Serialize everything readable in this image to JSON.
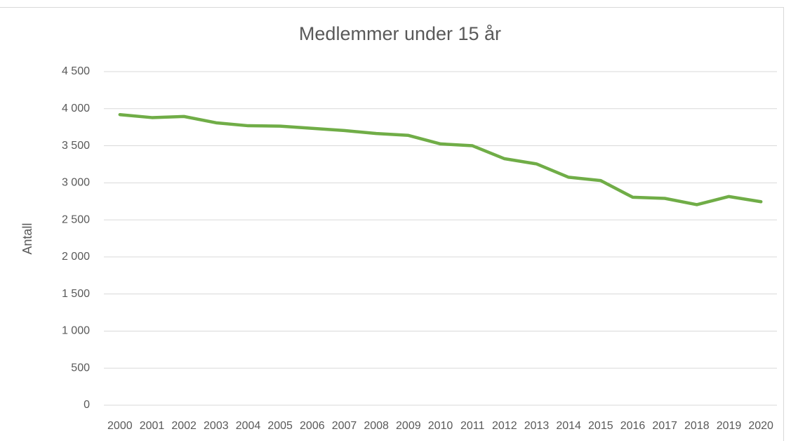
{
  "chart_data": {
    "type": "line",
    "title": "Medlemmer under 15 år",
    "y_label": "Antall",
    "categories": [
      "2000",
      "2001",
      "2002",
      "2003",
      "2004",
      "2005",
      "2006",
      "2007",
      "2008",
      "2009",
      "2010",
      "2011",
      "2012",
      "2013",
      "2014",
      "2015",
      "2016",
      "2017",
      "2018",
      "2019",
      "2020"
    ],
    "series": [
      {
        "name": "Medlemmer under 15 år",
        "color": "#70ad47",
        "values": [
          3920,
          3880,
          3895,
          3810,
          3770,
          3765,
          3735,
          3705,
          3665,
          3640,
          3525,
          3500,
          3325,
          3255,
          3075,
          3030,
          2805,
          2790,
          2705,
          2815,
          2745
        ]
      }
    ],
    "ylim": [
      0,
      4500
    ],
    "yticks": [
      0,
      500,
      {
        "value": 1000,
        "label": "1 000"
      },
      {
        "value": 1500,
        "label": "1 500"
      },
      {
        "value": 2000,
        "label": "2 000"
      },
      {
        "value": 2500,
        "label": "2 500"
      },
      {
        "value": 3000,
        "label": "3 000"
      },
      {
        "value": 3500,
        "label": "3 500"
      },
      {
        "value": 4000,
        "label": "4 000"
      },
      {
        "value": 4500,
        "label": "4 500"
      }
    ],
    "grid": true
  }
}
